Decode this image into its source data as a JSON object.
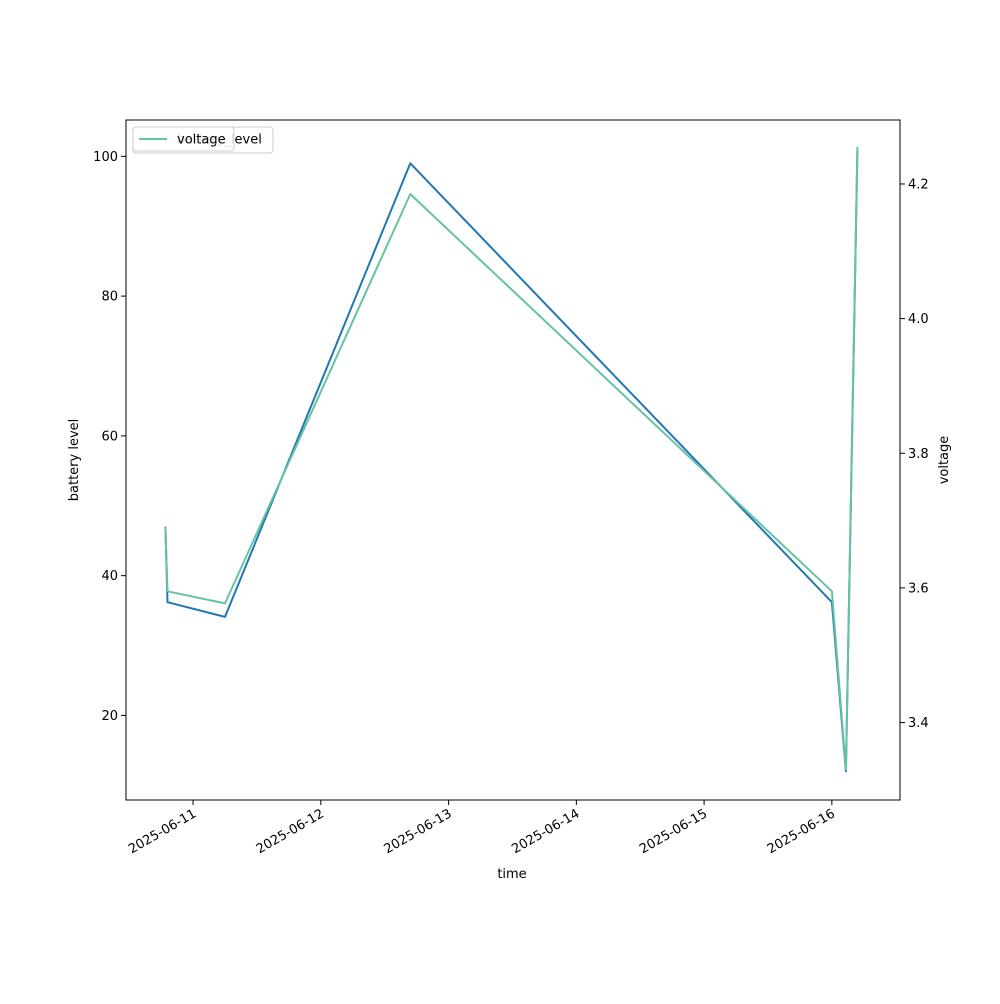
{
  "chart_data": {
    "type": "line",
    "xlabel": "time",
    "ylabel_left": "battery level",
    "ylabel_right": "voltage",
    "x_tick_labels": [
      "2025-06-11",
      "2025-06-12",
      "2025-06-13",
      "2025-06-14",
      "2025-06-15",
      "2025-06-16"
    ],
    "y_left_ticks": [
      20,
      40,
      60,
      80,
      100
    ],
    "y_right_ticks": [
      "3.4",
      "3.6",
      "3.8",
      "4.0",
      "4.2"
    ],
    "y_left_lim": [
      7.9,
      105.2
    ],
    "y_right_lim": [
      3.285,
      4.295
    ],
    "x_lim": [
      "2025-06-10 11:24",
      "2025-06-16 12:48"
    ],
    "legend_placement": "upper-left",
    "legend_entries": [
      "battery_level",
      "voltage"
    ],
    "grid": false,
    "series": [
      {
        "name": "battery_level",
        "axis": "left",
        "color": "#1f77b4",
        "points": [
          [
            "2025-06-10 18:48",
            47.0
          ],
          [
            "2025-06-10 19:12",
            36.2
          ],
          [
            "2025-06-11 06:00",
            34.1
          ],
          [
            "2025-06-12 16:48",
            99.0
          ],
          [
            "2025-06-16 00:00",
            36.2
          ],
          [
            "2025-06-16 02:38",
            12.0
          ],
          [
            "2025-06-16 04:48",
            100.8
          ]
        ]
      },
      {
        "name": "voltage",
        "axis": "right",
        "color": "#66c2a5",
        "points": [
          [
            "2025-06-10 18:48",
            3.69
          ],
          [
            "2025-06-10 19:12",
            3.595
          ],
          [
            "2025-06-11 06:00",
            3.577
          ],
          [
            "2025-06-12 16:48",
            4.185
          ],
          [
            "2025-06-16 00:00",
            3.595
          ],
          [
            "2025-06-16 02:38",
            3.33
          ],
          [
            "2025-06-16 04:48",
            4.255
          ]
        ]
      }
    ]
  }
}
